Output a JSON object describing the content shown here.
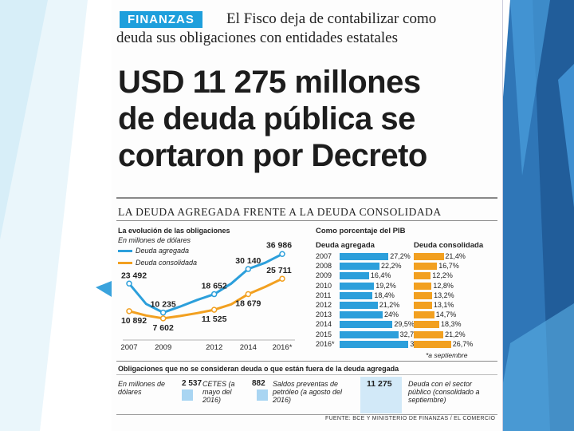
{
  "article": {
    "tag": "FINANZAS",
    "kicker_line1": "El Fisco deja de contabilizar como",
    "kicker_line2": "deuda sus obligaciones con entidades estatales",
    "headline_line1": "USD 11 275 millones",
    "headline_line2": "de deuda pública se",
    "headline_line3": "cortaron por Decreto",
    "section_title": "LA DEUDA AGREGADA FRENTE A LA DEUDA CONSOLIDADA",
    "source": "FUENTE: BCE Y MINISTERIO DE FINANZAS / EL COMERCIO"
  },
  "line_chart": {
    "title": "La evolución de las obligaciones",
    "subtitle": "En millones de dólares",
    "legend_agregada": "Deuda agregada",
    "legend_consolidada": "Deuda consolidada"
  },
  "pct_table": {
    "title": "Como porcentaje del PIB",
    "col_agregada": "Deuda agregada",
    "col_consolidada": "Deuda consolidada",
    "note": "*a septiembre"
  },
  "footer": {
    "title": "Obligaciones que no se consideran deuda o que están fuera de la deuda agregada",
    "units": "En millones de dólares",
    "cetes_value": "2 537",
    "cetes_label": "CETES (a mayo del 2016)",
    "preventas_value": "882",
    "preventas_label": "Saldos preventas de petróleo (a agosto del 2016)",
    "total_value": "11 275",
    "total_label": "Deuda con el sector público (consolidado a septiembre)"
  },
  "colors": {
    "agregada": "#2c9fdb",
    "consolidada": "#f2a020",
    "tag": "#1e9fdc"
  },
  "chart_data": [
    {
      "type": "line",
      "title": "La evolución de las obligaciones",
      "subtitle": "En millones de dólares",
      "x": [
        "2007",
        "2008",
        "2009",
        "2010",
        "2011",
        "2012",
        "2013",
        "2014",
        "2015",
        "2016*"
      ],
      "x_tick_labels": [
        "2007",
        "2009",
        "2012",
        "2014",
        "2016*"
      ],
      "series": [
        {
          "name": "Deuda agregada",
          "values": [
            23492,
            14200,
            10235,
            13000,
            16000,
            18652,
            23500,
            30140,
            33000,
            36986
          ],
          "labels": {
            "2007": "23 492",
            "2009": "10 235",
            "2012": "18 652",
            "2014": "30 140",
            "2016*": "36 986"
          }
        },
        {
          "name": "Deuda consolidada",
          "values": [
            10892,
            8900,
            7602,
            8700,
            10000,
            11525,
            14000,
            18679,
            22000,
            25711
          ],
          "labels": {
            "2007": "10 892",
            "2009": "7 602",
            "2012": "11 525",
            "2014": "18 679",
            "2016*": "25 711"
          }
        }
      ],
      "ylim": [
        5000,
        40000
      ]
    },
    {
      "type": "bar",
      "title": "Como porcentaje del PIB",
      "categories": [
        "2007",
        "2008",
        "2009",
        "2010",
        "2011",
        "2012",
        "2013",
        "2014",
        "2015",
        "2016*"
      ],
      "series": [
        {
          "name": "Deuda agregada",
          "values": [
            27.2,
            22.2,
            16.4,
            19.2,
            18.4,
            21.2,
            24,
            29.5,
            32.7,
            38.4
          ],
          "labels": [
            "27,2%",
            "22,2%",
            "16,4%",
            "19,2%",
            "18,4%",
            "21,2%",
            "24%",
            "29,5%",
            "32,7%",
            "38,4%"
          ]
        },
        {
          "name": "Deuda consolidada",
          "values": [
            21.4,
            16.7,
            12.2,
            12.8,
            13.2,
            13.1,
            14.7,
            18.3,
            21.2,
            26.7
          ],
          "labels": [
            "21,4%",
            "16,7%",
            "12,2%",
            "12,8%",
            "13,2%",
            "13,1%",
            "14,7%",
            "18,3%",
            "21,2%",
            "26,7%"
          ]
        }
      ]
    }
  ]
}
